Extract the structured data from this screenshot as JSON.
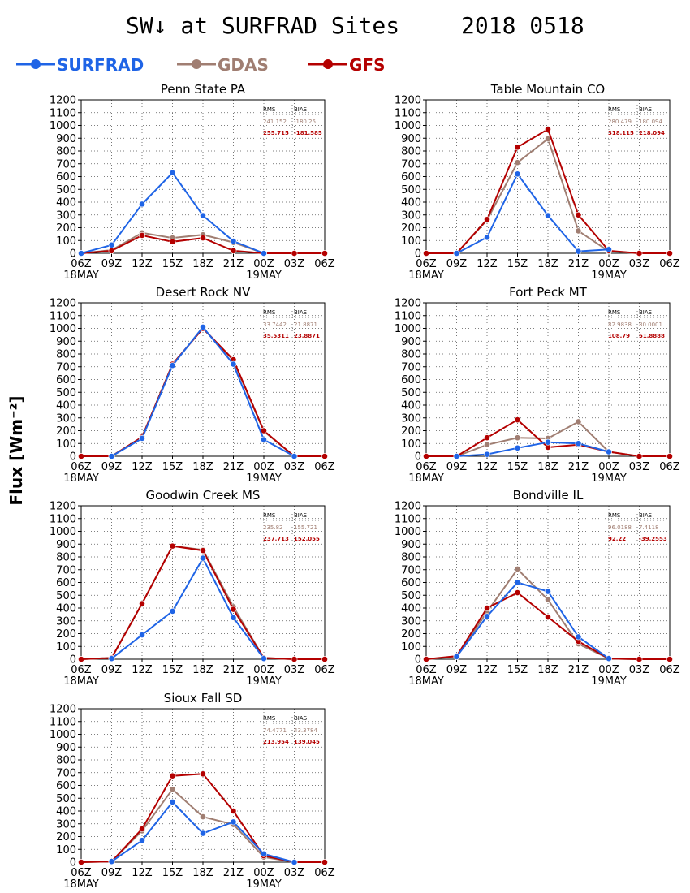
{
  "title_left": "SW↓ at SURFRAD Sites",
  "title_right": "2018 0518",
  "ylabel": "Flux [Wm⁻²]",
  "colors": {
    "SURFRAD": "#1f64e6",
    "GDAS": "#a07e72",
    "GFS": "#b40000"
  },
  "legend": [
    {
      "name": "SURFRAD",
      "color": "#1f64e6"
    },
    {
      "name": "GDAS",
      "color": "#a07e72"
    },
    {
      "name": "GFS",
      "color": "#b40000"
    }
  ],
  "stats_headers": {
    "rms": "RMS",
    "bias": "BIAS"
  },
  "chart_data": [
    {
      "type": "line",
      "title": "Penn State PA",
      "categories": [
        "06Z",
        "09Z",
        "12Z",
        "15Z",
        "18Z",
        "21Z",
        "00Z",
        "03Z",
        "06Z"
      ],
      "date_labels": {
        "start": "18MAY",
        "mid": "19MAY"
      },
      "ylim": [
        0,
        1200
      ],
      "yticks": [
        0,
        100,
        200,
        300,
        400,
        500,
        600,
        700,
        800,
        900,
        1000,
        1100,
        1200
      ],
      "grid": true,
      "series": [
        {
          "name": "SURFRAD",
          "values": [
            0,
            65,
            385,
            630,
            295,
            95,
            0,
            null,
            null
          ]
        },
        {
          "name": "GDAS",
          "values": [
            0,
            25,
            160,
            120,
            145,
            85,
            0,
            0,
            0
          ]
        },
        {
          "name": "GFS",
          "values": [
            0,
            20,
            140,
            90,
            120,
            20,
            0,
            0,
            0
          ]
        }
      ],
      "stats": {
        "gdas_rms": "241.152",
        "gdas_bias": "-180.25",
        "gfs_rms": "255.715",
        "gfs_bias": "-181.585"
      }
    },
    {
      "type": "line",
      "title": "Table Mountain CO",
      "categories": [
        "06Z",
        "09Z",
        "12Z",
        "15Z",
        "18Z",
        "21Z",
        "00Z",
        "03Z",
        "06Z"
      ],
      "date_labels": {
        "start": "18MAY",
        "mid": "19MAY"
      },
      "ylim": [
        0,
        1200
      ],
      "yticks": [
        0,
        100,
        200,
        300,
        400,
        500,
        600,
        700,
        800,
        900,
        1000,
        1100,
        1200
      ],
      "grid": true,
      "series": [
        {
          "name": "SURFRAD",
          "values": [
            null,
            0,
            125,
            620,
            295,
            15,
            30,
            null,
            null
          ]
        },
        {
          "name": "GDAS",
          "values": [
            0,
            0,
            260,
            710,
            895,
            175,
            15,
            0,
            0
          ]
        },
        {
          "name": "GFS",
          "values": [
            0,
            0,
            265,
            830,
            970,
            300,
            20,
            0,
            0
          ]
        }
      ],
      "stats": {
        "gdas_rms": "280.479",
        "gdas_bias": "180.094",
        "gfs_rms": "318.115",
        "gfs_bias": "218.094"
      }
    },
    {
      "type": "line",
      "title": "Desert Rock NV",
      "categories": [
        "06Z",
        "09Z",
        "12Z",
        "15Z",
        "18Z",
        "21Z",
        "00Z",
        "03Z",
        "06Z"
      ],
      "date_labels": {
        "start": "18MAY",
        "mid": "19MAY"
      },
      "ylim": [
        0,
        1200
      ],
      "yticks": [
        0,
        100,
        200,
        300,
        400,
        500,
        600,
        700,
        800,
        900,
        1000,
        1100,
        1200
      ],
      "grid": true,
      "series": [
        {
          "name": "SURFRAD",
          "values": [
            null,
            0,
            140,
            710,
            1010,
            720,
            130,
            0,
            null
          ]
        },
        {
          "name": "GDAS",
          "values": [
            0,
            0,
            150,
            720,
            1000,
            750,
            195,
            0,
            0
          ]
        },
        {
          "name": "GFS",
          "values": [
            0,
            0,
            150,
            720,
            1000,
            755,
            200,
            0,
            0
          ]
        }
      ],
      "stats": {
        "gdas_rms": "33.7442",
        "gdas_bias": "21.8871",
        "gfs_rms": "35.5311",
        "gfs_bias": "23.8871"
      }
    },
    {
      "type": "line",
      "title": "Fort Peck MT",
      "categories": [
        "06Z",
        "09Z",
        "12Z",
        "15Z",
        "18Z",
        "21Z",
        "00Z",
        "03Z",
        "06Z"
      ],
      "date_labels": {
        "start": "18MAY",
        "mid": "19MAY"
      },
      "ylim": [
        0,
        1200
      ],
      "yticks": [
        0,
        100,
        200,
        300,
        400,
        500,
        600,
        700,
        800,
        900,
        1000,
        1100,
        1200
      ],
      "grid": true,
      "series": [
        {
          "name": "SURFRAD",
          "values": [
            null,
            0,
            15,
            65,
            110,
            100,
            35,
            null,
            null
          ]
        },
        {
          "name": "GDAS",
          "values": [
            0,
            0,
            90,
            145,
            140,
            270,
            35,
            0,
            0
          ]
        },
        {
          "name": "GFS",
          "values": [
            0,
            0,
            145,
            285,
            70,
            90,
            35,
            0,
            0
          ]
        }
      ],
      "stats": {
        "gdas_rms": "82.9838",
        "gdas_bias": "80.0001",
        "gfs_rms": "108.79",
        "gfs_bias": "51.8888"
      }
    },
    {
      "type": "line",
      "title": "Goodwin Creek MS",
      "categories": [
        "06Z",
        "09Z",
        "12Z",
        "15Z",
        "18Z",
        "21Z",
        "00Z",
        "03Z",
        "06Z"
      ],
      "date_labels": {
        "start": "18MAY",
        "mid": "19MAY"
      },
      "ylim": [
        0,
        1200
      ],
      "yticks": [
        0,
        100,
        200,
        300,
        400,
        500,
        600,
        700,
        800,
        900,
        1000,
        1100,
        1200
      ],
      "grid": true,
      "series": [
        {
          "name": "SURFRAD",
          "values": [
            null,
            5,
            190,
            375,
            790,
            325,
            5,
            null,
            null
          ]
        },
        {
          "name": "GDAS",
          "values": [
            0,
            10,
            435,
            885,
            855,
            410,
            10,
            0,
            0
          ]
        },
        {
          "name": "GFS",
          "values": [
            0,
            10,
            435,
            885,
            850,
            390,
            10,
            0,
            0
          ]
        }
      ],
      "stats": {
        "gdas_rms": "235.82",
        "gdas_bias": "155.721",
        "gfs_rms": "237.713",
        "gfs_bias": "152.055"
      }
    },
    {
      "type": "line",
      "title": "Bondville IL",
      "categories": [
        "06Z",
        "09Z",
        "12Z",
        "15Z",
        "18Z",
        "21Z",
        "00Z",
        "03Z",
        "06Z"
      ],
      "date_labels": {
        "start": "18MAY",
        "mid": "19MAY"
      },
      "ylim": [
        0,
        1200
      ],
      "yticks": [
        0,
        100,
        200,
        300,
        400,
        500,
        600,
        700,
        800,
        900,
        1000,
        1100,
        1200
      ],
      "grid": true,
      "series": [
        {
          "name": "SURFRAD",
          "values": [
            null,
            20,
            335,
            600,
            530,
            175,
            5,
            null,
            null
          ]
        },
        {
          "name": "GDAS",
          "values": [
            0,
            20,
            370,
            705,
            465,
            120,
            5,
            0,
            0
          ]
        },
        {
          "name": "GFS",
          "values": [
            0,
            25,
            400,
            520,
            330,
            140,
            5,
            0,
            0
          ]
        }
      ],
      "stats": {
        "gdas_rms": "96.0188",
        "gdas_bias": "7.4118",
        "gfs_rms": "92.22",
        "gfs_bias": "-39.2553"
      }
    },
    {
      "type": "line",
      "title": "Sioux Fall SD",
      "categories": [
        "06Z",
        "09Z",
        "12Z",
        "15Z",
        "18Z",
        "21Z",
        "00Z",
        "03Z",
        "06Z"
      ],
      "date_labels": {
        "start": "18MAY",
        "mid": "19MAY"
      },
      "ylim": [
        0,
        1200
      ],
      "yticks": [
        0,
        100,
        200,
        300,
        400,
        500,
        600,
        700,
        800,
        900,
        1000,
        1100,
        1200
      ],
      "grid": true,
      "series": [
        {
          "name": "SURFRAD",
          "values": [
            null,
            5,
            170,
            470,
            225,
            315,
            65,
            0,
            null
          ]
        },
        {
          "name": "GDAS",
          "values": [
            0,
            5,
            245,
            570,
            355,
            295,
            40,
            0,
            0
          ]
        },
        {
          "name": "GFS",
          "values": [
            0,
            5,
            260,
            675,
            690,
            400,
            50,
            0,
            0
          ]
        }
      ],
      "stats": {
        "gdas_rms": "74.4771",
        "gdas_bias": "43.3784",
        "gfs_rms": "213.954",
        "gfs_bias": "139.045"
      }
    }
  ]
}
